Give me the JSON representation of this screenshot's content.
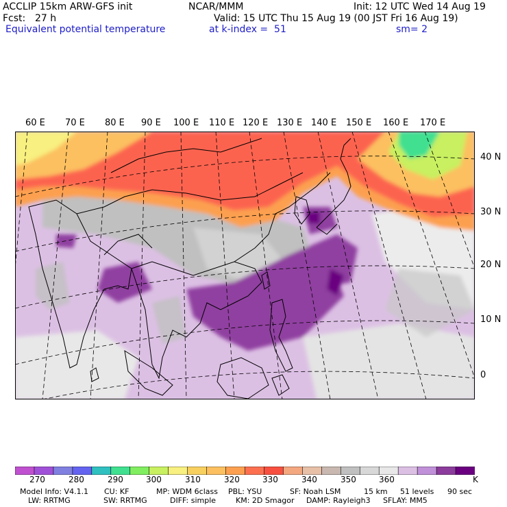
{
  "header": {
    "model": "ACCLIP 15km ARW-GFS init",
    "org": "NCAR/MMM",
    "init": "Init: 12 UTC Wed 14 Aug 19",
    "fcst_label": "Fcst:",
    "fcst_value": "27 h",
    "valid": "Valid: 15 UTC Thu 15 Aug 19 (00 JST Fri 16 Aug 19)",
    "field": "Equivalent potential temperature",
    "level": "at k-index =  51",
    "smooth": "sm= 2"
  },
  "map": {
    "lon_labels": [
      "60 E",
      "70 E",
      "80 E",
      "90 E",
      "100 E",
      "110 E",
      "120 E",
      "130 E",
      "140 E",
      "150 E",
      "160 E",
      "170 E"
    ],
    "lat_labels": [
      "40 N",
      "30 N",
      "20 N",
      "10 N",
      "0"
    ]
  },
  "colorbar": {
    "colors": [
      "#c050d0",
      "#a050d8",
      "#8080e0",
      "#6464f0",
      "#30c0c0",
      "#40e090",
      "#80ee60",
      "#c8f060",
      "#f8f080",
      "#f8d060",
      "#fcc060",
      "#fca050",
      "#fc7050",
      "#f85040",
      "#f4a880",
      "#e8c0a8",
      "#c8b8b0",
      "#c0c0c0",
      "#d8d8d8",
      "#e8e8e8",
      "#dcc0e4",
      "#c090d8",
      "#8c3c9c",
      "#6a0080"
    ],
    "labels": [
      "270",
      "280",
      "290",
      "300",
      "310",
      "320",
      "330",
      "340",
      "350",
      "360"
    ],
    "unit": "K"
  },
  "model_info": {
    "line1": [
      "Model Info: V4.1.1",
      "CU: KF",
      "MP: WDM 6class",
      "PBL: YSU",
      "SF: Noah LSM",
      "15 km",
      "51 levels",
      "90 sec"
    ],
    "line2": [
      "LW: RRTMG",
      "SW: RRTMG",
      "DIFF: simple",
      "KM: 2D Smagor",
      "DAMP: Rayleigh3",
      "SFLAY: MM5"
    ]
  },
  "colors": {
    "hot": "#fc6450",
    "warm": "#fca050",
    "mid": "#c8c8c8",
    "moist": "#d8bce2",
    "purple": "#9040a0",
    "deep": "#700080"
  }
}
